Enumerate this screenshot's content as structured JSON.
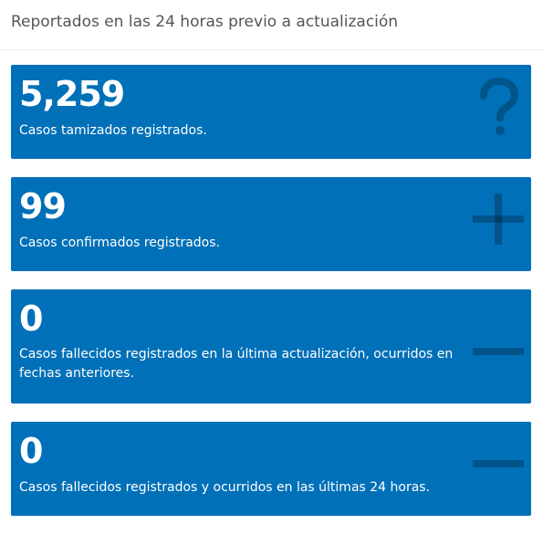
{
  "header": {
    "title": "Reportados en las 24 horas previo a actualización"
  },
  "cards": [
    {
      "value": "5,259",
      "description": "Casos tamizados registrados.",
      "icon": "question-icon",
      "color": "#0070b8"
    },
    {
      "value": "99",
      "description": "Casos confirmados registrados.",
      "icon": "plus-icon",
      "color": "#0070b8"
    },
    {
      "value": "0",
      "description": "Casos fallecidos registrados en la última actualización, ocurridos en fechas anteriores.",
      "icon": "minus-icon",
      "color": "#0070b8"
    },
    {
      "value": "0",
      "description": "Casos fallecidos registrados y ocurridos en las últimas 24 horas.",
      "icon": "minus-icon",
      "color": "#0070b8"
    }
  ]
}
